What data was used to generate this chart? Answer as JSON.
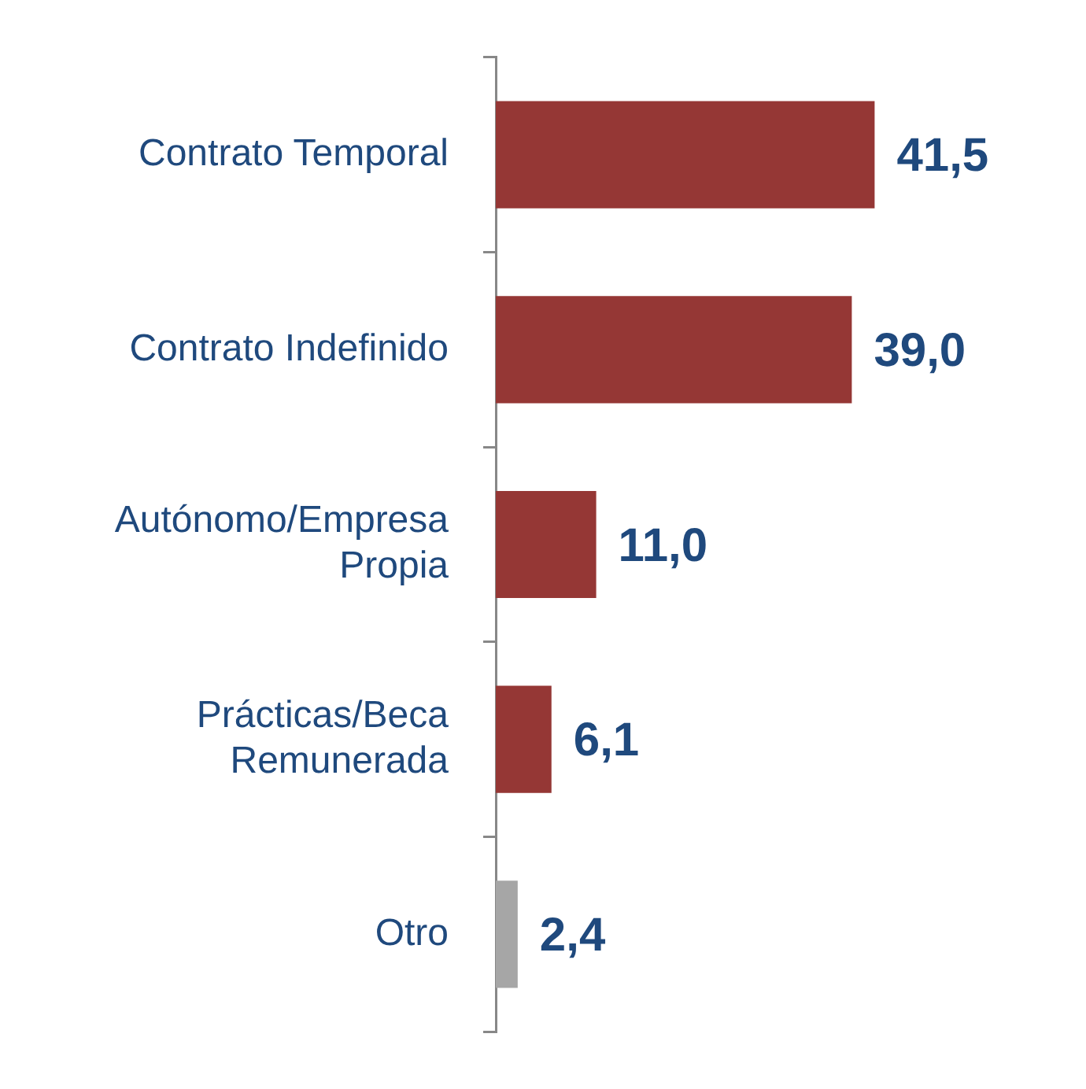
{
  "chart_data": {
    "type": "bar",
    "orientation": "horizontal",
    "categories": [
      "Contrato Temporal",
      "Contrato Indefinido",
      "Autónomo/Empresa Propia",
      "Prácticas/Beca Remunerada",
      "Otro"
    ],
    "values": [
      41.5,
      39.0,
      11.0,
      6.1,
      2.4
    ],
    "colors": [
      "#953735",
      "#953735",
      "#953735",
      "#953735",
      "#a6a6a6"
    ],
    "value_labels": [
      "41,5",
      "39,0",
      "11,0",
      "6,1",
      "2,4"
    ]
  }
}
